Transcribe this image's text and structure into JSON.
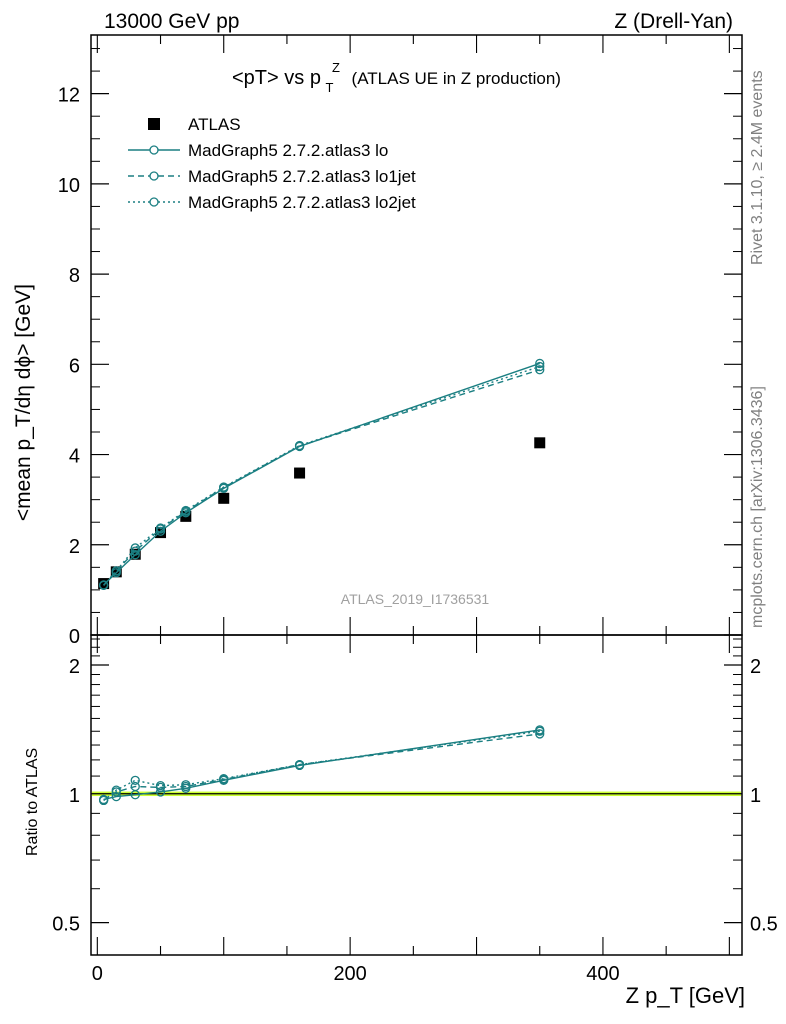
{
  "header": {
    "left": "13000 GeV pp",
    "right": "Z (Drell-Yan)"
  },
  "side": {
    "top": "Rivet 3.1.10, ≥ 2.4M events",
    "bottom": "mcplots.cern.ch [arXiv:1306.3436]"
  },
  "analysis_label": "ATLAS_2019_I1736531",
  "colors": {
    "data": "#000000",
    "mc": "#1b7f82",
    "ratio_band": "#ccff33"
  },
  "chart_data": [
    {
      "type": "line",
      "title_main": "<pT> vs p",
      "title_sup": "Z",
      "title_sub": "T",
      "title_rest": "(ATLAS UE in Z production)",
      "ylabel": "<mean p_T/dη dϕ> [GeV]",
      "ylim": [
        0,
        13.3
      ],
      "xlim": [
        -5,
        510
      ],
      "yticks": [
        {
          "v": 0,
          "label": "0"
        },
        {
          "v": 2,
          "label": "2"
        },
        {
          "v": 4,
          "label": "4"
        },
        {
          "v": 6,
          "label": "6"
        },
        {
          "v": 8,
          "label": "8"
        },
        {
          "v": 10,
          "label": "10"
        },
        {
          "v": 12,
          "label": "12"
        }
      ],
      "legend_position": "top-left",
      "series": [
        {
          "name": "ATLAS",
          "style": "marker",
          "x": [
            5,
            15,
            30,
            50,
            70,
            100,
            160,
            350
          ],
          "y": [
            1.14,
            1.4,
            1.79,
            2.27,
            2.63,
            3.03,
            3.59,
            4.26
          ]
        },
        {
          "name": "MadGraph5 2.7.2.atlas3 lo",
          "style": "solid",
          "x": [
            5,
            15,
            30,
            50,
            70,
            100,
            160,
            350
          ],
          "y": [
            1.11,
            1.38,
            1.78,
            2.3,
            2.71,
            3.25,
            4.18,
            6.02
          ]
        },
        {
          "name": "MadGraph5 2.7.2.atlas3 lo1jet",
          "style": "dashed",
          "x": [
            5,
            15,
            30,
            50,
            70,
            100,
            160,
            350
          ],
          "y": [
            1.1,
            1.42,
            1.86,
            2.35,
            2.74,
            3.27,
            4.19,
            5.88
          ]
        },
        {
          "name": "MadGraph5 2.7.2.atlas3 lo2jet",
          "style": "dotted",
          "x": [
            5,
            15,
            30,
            50,
            70,
            100,
            160,
            350
          ],
          "y": [
            1.1,
            1.42,
            1.93,
            2.37,
            2.76,
            3.28,
            4.2,
            5.95
          ]
        }
      ]
    },
    {
      "type": "line",
      "xlabel": "Z p_T [GeV]",
      "ylabel": "Ratio to ATLAS",
      "yscale": "log",
      "ylim": [
        0.42,
        2.35
      ],
      "xlim": [
        -5,
        510
      ],
      "xticks": [
        {
          "v": 0,
          "label": "0"
        },
        {
          "v": 200,
          "label": "200"
        },
        {
          "v": 400,
          "label": "400"
        }
      ],
      "yticks": [
        {
          "v": 0.5,
          "label": "0.5"
        },
        {
          "v": 1,
          "label": "1"
        },
        {
          "v": 2,
          "label": "2"
        }
      ],
      "series": [
        {
          "name": "MadGraph5 2.7.2.atlas3 lo",
          "style": "solid",
          "x": [
            5,
            15,
            30,
            50,
            70,
            100,
            160,
            350
          ],
          "y": [
            0.97,
            0.985,
            0.995,
            1.01,
            1.03,
            1.075,
            1.165,
            1.41
          ]
        },
        {
          "name": "MadGraph5 2.7.2.atlas3 lo1jet",
          "style": "dashed",
          "x": [
            5,
            15,
            30,
            50,
            70,
            100,
            160,
            350
          ],
          "y": [
            0.965,
            1.01,
            1.04,
            1.035,
            1.04,
            1.08,
            1.17,
            1.38
          ]
        },
        {
          "name": "MadGraph5 2.7.2.atlas3 lo2jet",
          "style": "dotted",
          "x": [
            5,
            15,
            30,
            50,
            70,
            100,
            160,
            350
          ],
          "y": [
            0.965,
            1.02,
            1.075,
            1.045,
            1.05,
            1.085,
            1.17,
            1.4
          ]
        }
      ]
    }
  ]
}
